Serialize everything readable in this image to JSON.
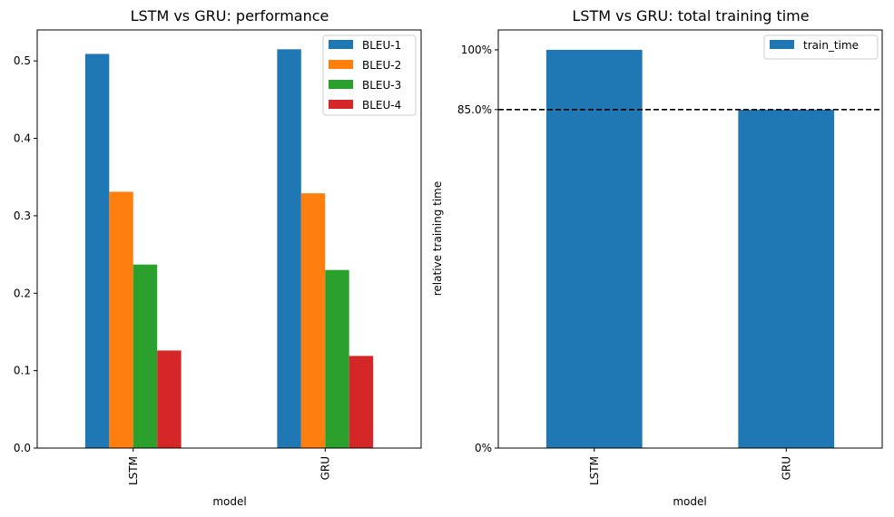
{
  "chart_data": [
    {
      "type": "bar",
      "title": "LSTM vs GRU: performance",
      "xlabel": "model",
      "ylabel": "",
      "categories": [
        "LSTM",
        "GRU"
      ],
      "ylim": [
        0,
        0.54
      ],
      "yticks": [
        0.0,
        0.1,
        0.2,
        0.3,
        0.4,
        0.5
      ],
      "ytick_labels": [
        "0.0",
        "0.1",
        "0.2",
        "0.3",
        "0.4",
        "0.5"
      ],
      "series": [
        {
          "name": "BLEU-1",
          "color": "#1f77b4",
          "values": [
            0.509,
            0.515
          ]
        },
        {
          "name": "BLEU-2",
          "color": "#ff7f0e",
          "values": [
            0.331,
            0.329
          ]
        },
        {
          "name": "BLEU-3",
          "color": "#2ca02c",
          "values": [
            0.237,
            0.23
          ]
        },
        {
          "name": "BLEU-4",
          "color": "#d62728",
          "values": [
            0.126,
            0.119
          ]
        }
      ],
      "legend": "top-right",
      "grid": false
    },
    {
      "type": "bar",
      "title": "LSTM vs GRU: total training time",
      "xlabel": "model",
      "ylabel": "relative training time",
      "categories": [
        "LSTM",
        "GRU"
      ],
      "ylim": [
        0,
        1.05
      ],
      "yticks": [
        0,
        0.85,
        1.0
      ],
      "ytick_labels": [
        "0%",
        "85.0%",
        "100%"
      ],
      "series": [
        {
          "name": "train_time",
          "color": "#1f77b4",
          "values": [
            1.0,
            0.85
          ]
        }
      ],
      "reference_line": {
        "value": 0.85,
        "style": "dashed",
        "color": "#000000"
      },
      "legend": "top-right",
      "grid": false
    }
  ]
}
